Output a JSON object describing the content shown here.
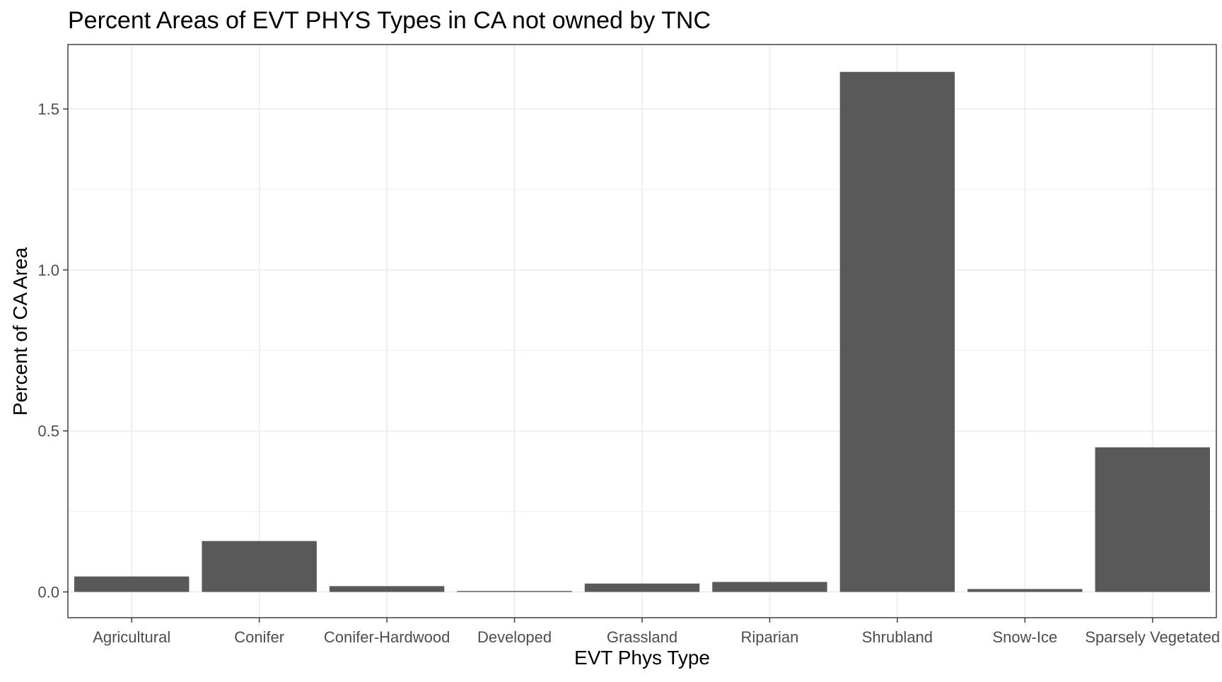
{
  "chart_data": {
    "type": "bar",
    "title": "Percent Areas of EVT PHYS Types in CA not owned by TNC",
    "xlabel": "EVT Phys Type",
    "ylabel": "Percent of CA Area",
    "categories": [
      "Agricultural",
      "Conifer",
      "Conifer-Hardwood",
      "Developed",
      "Grassland",
      "Riparian",
      "Shrubland",
      "Snow-Ice",
      "Sparsely Vegetated"
    ],
    "values": [
      0.048,
      0.158,
      0.018,
      0.003,
      0.026,
      0.031,
      1.615,
      0.009,
      0.449
    ],
    "ylim": [
      -0.08,
      1.7
    ],
    "yticks": [
      0.0,
      0.5,
      1.0,
      1.5
    ],
    "ytick_labels": [
      "0.0",
      "0.5",
      "1.0",
      "1.5"
    ],
    "grid": true,
    "bar_color": "#595959",
    "grid_color": "#ebebeb",
    "panel_border_color": "#333333",
    "text_color": "#000000",
    "tick_label_color": "#4d4d4d"
  }
}
